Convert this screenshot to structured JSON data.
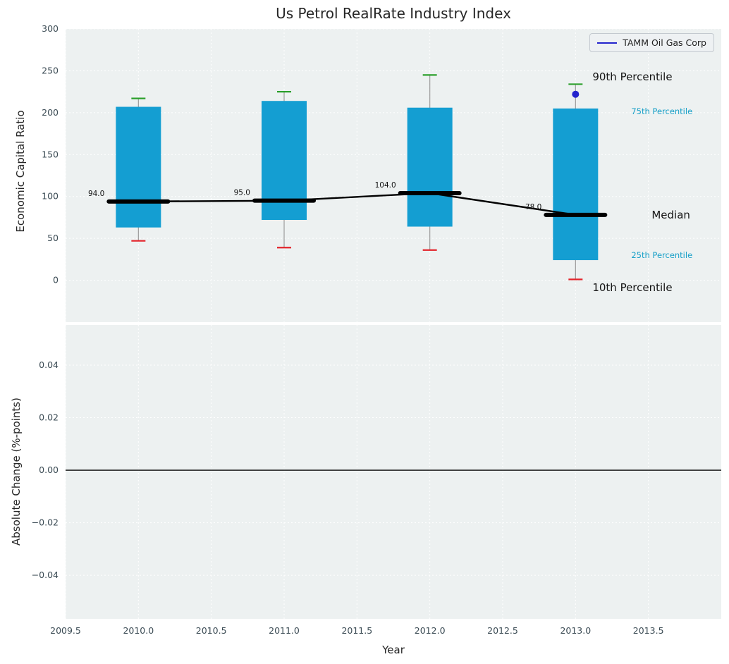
{
  "figure_title": "Us Petrol RealRate Industry Index",
  "legend": {
    "label": "TAMM Oil Gas Corp"
  },
  "axes": {
    "top": {
      "ylabel": "Economic Capital Ratio"
    },
    "bottom": {
      "ylabel": "Absolute Change (%-points)",
      "xlabel": "Year"
    }
  },
  "annotations": {
    "p90": {
      "text": "90th Percentile"
    },
    "p75": {
      "text": "75th Percentile"
    },
    "median": {
      "text": "Median"
    },
    "p25": {
      "text": "25th Percentile"
    },
    "p10": {
      "text": "10th Percentile"
    }
  },
  "colors": {
    "axes_bg": "#edf1f1",
    "grid": "#ffffff",
    "box_fill": "#149ed2",
    "whisker": "#9b9b9b",
    "cap_high": "#2ca02c",
    "cap_low": "#e3242b",
    "median": "#000000",
    "company_blue": "#2424cd",
    "tick_text": "#3b4b54",
    "percentile_label": "#18a0c8"
  },
  "chart_data": [
    {
      "type": "boxplot",
      "title": "Us Petrol RealRate Industry Index",
      "ylabel": "Economic Capital Ratio",
      "xlabel": "",
      "xlim": [
        2009.5,
        2014.0
      ],
      "ylim": [
        -50,
        300
      ],
      "grid": true,
      "legend_position": "upper right",
      "yticks": [
        300,
        250,
        200,
        150,
        100,
        50,
        0
      ],
      "ytick_labels": [
        "300",
        "250",
        "200",
        "150",
        "100",
        "50",
        "0"
      ],
      "xticks": [
        2009.5,
        2010.0,
        2010.5,
        2011.0,
        2011.5,
        2012.0,
        2012.5,
        2013.0,
        2013.5
      ],
      "xtick_labels": [
        "2009.5",
        "2010.0",
        "2010.5",
        "2011.0",
        "2011.5",
        "2012.0",
        "2012.5",
        "2013.0",
        "2013.5"
      ],
      "categories": [
        2010,
        2011,
        2012,
        2013
      ],
      "series": [
        {
          "name": "10th Percentile",
          "values": [
            47,
            39,
            36,
            1
          ]
        },
        {
          "name": "25th Percentile",
          "values": [
            63,
            72,
            64,
            24
          ]
        },
        {
          "name": "Median",
          "values": [
            94,
            95,
            104,
            78
          ]
        },
        {
          "name": "75th Percentile",
          "values": [
            207,
            214,
            206,
            205
          ]
        },
        {
          "name": "90th Percentile",
          "values": [
            217,
            225,
            245,
            234
          ]
        }
      ],
      "median_labels": [
        "94.0",
        "95.0",
        "104.0",
        "78.0"
      ],
      "company_point": {
        "name": "TAMM Oil Gas Corp",
        "x": 2013,
        "y": 222
      }
    },
    {
      "type": "line",
      "ylabel": "Absolute Change (%-points)",
      "xlabel": "Year",
      "xlim": [
        2009.5,
        2014.0
      ],
      "ylim": [
        -0.0566,
        0.0553
      ],
      "grid": true,
      "yticks": [
        0.04,
        0.02,
        0.0,
        -0.02,
        -0.04
      ],
      "ytick_labels": [
        "0.04",
        "0.02",
        "0.00",
        "−0.02",
        "−0.04"
      ],
      "zero_line": 0.0,
      "series": []
    }
  ]
}
